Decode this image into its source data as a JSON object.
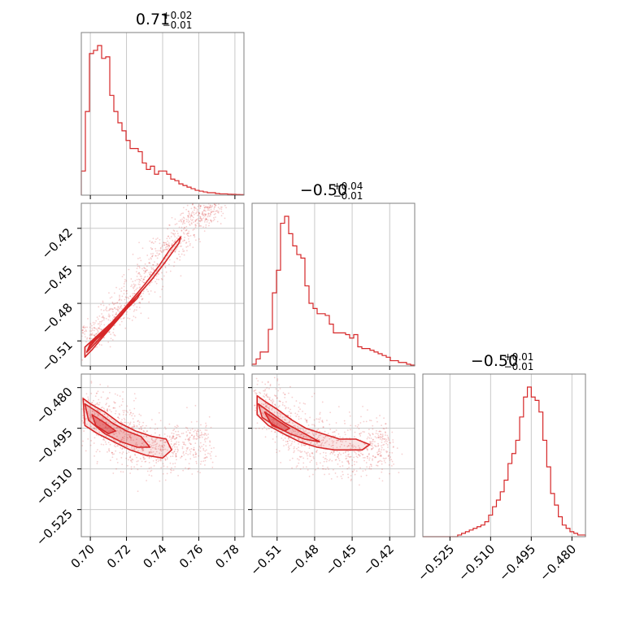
{
  "chart_data": {
    "type": "corner",
    "color": "#d62728",
    "grid": true,
    "params": [
      {
        "range": [
          0.695,
          0.785
        ],
        "ticks": [
          0.7,
          0.72,
          0.74,
          0.76,
          0.78
        ],
        "tick_labels": [
          "0.70",
          "0.72",
          "0.74",
          "0.76",
          "0.78"
        ],
        "title": {
          "value": "0.71",
          "plus": "+0.02",
          "minus": "−0.01"
        },
        "histogram": [
          0.15,
          0.52,
          0.88,
          0.9,
          0.93,
          0.85,
          0.86,
          0.62,
          0.52,
          0.45,
          0.4,
          0.34,
          0.29,
          0.29,
          0.27,
          0.2,
          0.16,
          0.18,
          0.13,
          0.15,
          0.15,
          0.13,
          0.1,
          0.09,
          0.07,
          0.06,
          0.05,
          0.04,
          0.03,
          0.025,
          0.02,
          0.015,
          0.015,
          0.01,
          0.008,
          0.008,
          0.006,
          0.005,
          0.004,
          0.003
        ]
      },
      {
        "range": [
          -0.53,
          -0.4
        ],
        "ticks": [
          -0.51,
          -0.48,
          -0.45,
          -0.42
        ],
        "tick_labels": [
          "−0.51",
          "−0.48",
          "−0.45",
          "−0.42"
        ],
        "title": {
          "value": "−0.50",
          "plus": "+0.04",
          "minus": "−0.01"
        },
        "histogram": [
          0.01,
          0.04,
          0.08,
          0.08,
          0.21,
          0.42,
          0.55,
          0.82,
          0.86,
          0.76,
          0.69,
          0.64,
          0.62,
          0.46,
          0.36,
          0.33,
          0.3,
          0.3,
          0.29,
          0.24,
          0.19,
          0.19,
          0.19,
          0.18,
          0.16,
          0.18,
          0.11,
          0.1,
          0.1,
          0.09,
          0.08,
          0.07,
          0.06,
          0.05,
          0.03,
          0.03,
          0.02,
          0.02,
          0.01,
          0.005
        ]
      },
      {
        "range": [
          -0.535,
          -0.475
        ],
        "ticks": [
          -0.525,
          -0.51,
          -0.495,
          -0.48
        ],
        "tick_labels": [
          "−0.525",
          "−0.510",
          "−0.495",
          "−0.480"
        ],
        "title": {
          "value": "−0.50",
          "plus": "+0.01",
          "minus": "−0.01"
        },
        "histogram": [
          0,
          0,
          0,
          0,
          0,
          0,
          0,
          0,
          0,
          0.01,
          0.02,
          0.03,
          0.04,
          0.05,
          0.06,
          0.07,
          0.09,
          0.13,
          0.18,
          0.22,
          0.27,
          0.34,
          0.44,
          0.5,
          0.58,
          0.72,
          0.84,
          0.9,
          0.84,
          0.82,
          0.75,
          0.58,
          0.42,
          0.26,
          0.19,
          0.12,
          0.07,
          0.05,
          0.03,
          0.02,
          0.01,
          0.01
        ]
      }
    ],
    "pairs": [
      {
        "x_param": 0,
        "y_param": 1,
        "samples": {
          "points": [
            [
              0.7,
              -0.505,
              0.006
            ],
            [
              0.705,
              -0.502,
              0.006
            ],
            [
              0.712,
              -0.49,
              0.006
            ],
            [
              0.72,
              -0.478,
              0.006
            ],
            [
              0.728,
              -0.464,
              0.006
            ],
            [
              0.735,
              -0.452,
              0.006
            ],
            [
              0.742,
              -0.437,
              0.005
            ],
            [
              0.748,
              -0.428,
              0.006
            ],
            [
              0.755,
              -0.417,
              0.006
            ],
            [
              0.76,
              -0.41,
              0.005
            ],
            [
              0.766,
              -0.403,
              0.005
            ]
          ],
          "count": 900
        },
        "contours": [
          {
            "level": "outer",
            "points": [
              [
                0.697,
                -0.523
              ],
              [
                0.697,
                -0.515
              ],
              [
                0.703,
                -0.507
              ],
              [
                0.712,
                -0.495
              ],
              [
                0.72,
                -0.482
              ],
              [
                0.73,
                -0.465
              ],
              [
                0.738,
                -0.45
              ],
              [
                0.744,
                -0.437
              ],
              [
                0.75,
                -0.427
              ],
              [
                0.749,
                -0.432
              ],
              [
                0.741,
                -0.448
              ],
              [
                0.734,
                -0.461
              ],
              [
                0.726,
                -0.474
              ],
              [
                0.717,
                -0.49
              ],
              [
                0.708,
                -0.505
              ],
              [
                0.701,
                -0.517
              ]
            ]
          },
          {
            "level": "mid",
            "points": [
              [
                0.698,
                -0.519
              ],
              [
                0.7,
                -0.512
              ],
              [
                0.707,
                -0.503
              ],
              [
                0.715,
                -0.492
              ],
              [
                0.722,
                -0.48
              ],
              [
                0.728,
                -0.471
              ],
              [
                0.726,
                -0.476
              ],
              [
                0.719,
                -0.486
              ],
              [
                0.711,
                -0.499
              ],
              [
                0.704,
                -0.51
              ]
            ]
          },
          {
            "level": "inner",
            "points": [
              [
                0.699,
                -0.516
              ],
              [
                0.702,
                -0.51
              ],
              [
                0.708,
                -0.503
              ],
              [
                0.712,
                -0.497
              ],
              [
                0.709,
                -0.502
              ],
              [
                0.703,
                -0.509
              ]
            ]
          }
        ]
      },
      {
        "x_param": 0,
        "y_param": 2,
        "samples": {
          "points": [
            [
              0.7,
              -0.489,
              0.006
            ],
            [
              0.708,
              -0.493,
              0.006
            ],
            [
              0.716,
              -0.497,
              0.006
            ],
            [
              0.724,
              -0.5,
              0.006
            ],
            [
              0.732,
              -0.502,
              0.006
            ],
            [
              0.74,
              -0.503,
              0.005
            ],
            [
              0.748,
              -0.502,
              0.005
            ],
            [
              0.76,
              -0.5,
              0.005
            ]
          ],
          "count": 900
        },
        "contours": [
          {
            "level": "outer",
            "points": [
              [
                0.696,
                -0.484
              ],
              [
                0.7,
                -0.486
              ],
              [
                0.708,
                -0.489
              ],
              [
                0.716,
                -0.493
              ],
              [
                0.725,
                -0.496
              ],
              [
                0.734,
                -0.498
              ],
              [
                0.742,
                -0.499
              ],
              [
                0.745,
                -0.503
              ],
              [
                0.74,
                -0.506
              ],
              [
                0.731,
                -0.505
              ],
              [
                0.722,
                -0.503
              ],
              [
                0.713,
                -0.5
              ],
              [
                0.704,
                -0.497
              ],
              [
                0.697,
                -0.494
              ]
            ]
          },
          {
            "level": "mid",
            "points": [
              [
                0.697,
                -0.486
              ],
              [
                0.704,
                -0.489
              ],
              [
                0.712,
                -0.493
              ],
              [
                0.72,
                -0.496
              ],
              [
                0.728,
                -0.498
              ],
              [
                0.733,
                -0.502
              ],
              [
                0.726,
                -0.502
              ],
              [
                0.717,
                -0.5
              ],
              [
                0.708,
                -0.497
              ],
              [
                0.699,
                -0.492
              ]
            ]
          },
          {
            "level": "inner",
            "points": [
              [
                0.701,
                -0.49
              ],
              [
                0.708,
                -0.493
              ],
              [
                0.714,
                -0.496
              ],
              [
                0.71,
                -0.497
              ],
              [
                0.703,
                -0.494
              ]
            ]
          }
        ]
      },
      {
        "x_param": 1,
        "y_param": 2,
        "samples": {
          "points": [
            [
              -0.52,
              -0.486,
              0.006
            ],
            [
              -0.51,
              -0.49,
              0.006
            ],
            [
              -0.5,
              -0.495,
              0.006
            ],
            [
              -0.49,
              -0.498,
              0.006
            ],
            [
              -0.478,
              -0.5,
              0.006
            ],
            [
              -0.465,
              -0.502,
              0.006
            ],
            [
              -0.45,
              -0.503,
              0.006
            ],
            [
              -0.435,
              -0.502,
              0.006
            ],
            [
              -0.425,
              -0.502,
              0.005
            ]
          ],
          "count": 900
        },
        "contours": [
          {
            "level": "outer",
            "points": [
              [
                -0.526,
                -0.483
              ],
              [
                -0.52,
                -0.485
              ],
              [
                -0.51,
                -0.488
              ],
              [
                -0.498,
                -0.492
              ],
              [
                -0.487,
                -0.495
              ],
              [
                -0.474,
                -0.497
              ],
              [
                -0.46,
                -0.499
              ],
              [
                -0.447,
                -0.499
              ],
              [
                -0.436,
                -0.501
              ],
              [
                -0.442,
                -0.503
              ],
              [
                -0.452,
                -0.503
              ],
              [
                -0.464,
                -0.503
              ],
              [
                -0.478,
                -0.502
              ],
              [
                -0.492,
                -0.5
              ],
              [
                -0.505,
                -0.497
              ],
              [
                -0.517,
                -0.494
              ],
              [
                -0.526,
                -0.49
              ]
            ]
          },
          {
            "level": "mid",
            "points": [
              [
                -0.525,
                -0.486
              ],
              [
                -0.516,
                -0.489
              ],
              [
                -0.504,
                -0.493
              ],
              [
                -0.492,
                -0.496
              ],
              [
                -0.48,
                -0.499
              ],
              [
                -0.476,
                -0.5
              ],
              [
                -0.488,
                -0.499
              ],
              [
                -0.5,
                -0.497
              ],
              [
                -0.512,
                -0.494
              ],
              [
                -0.522,
                -0.491
              ]
            ]
          },
          {
            "level": "inner",
            "points": [
              [
                -0.52,
                -0.489
              ],
              [
                -0.51,
                -0.492
              ],
              [
                -0.5,
                -0.495
              ],
              [
                -0.504,
                -0.496
              ],
              [
                -0.514,
                -0.494
              ]
            ]
          }
        ]
      }
    ]
  }
}
